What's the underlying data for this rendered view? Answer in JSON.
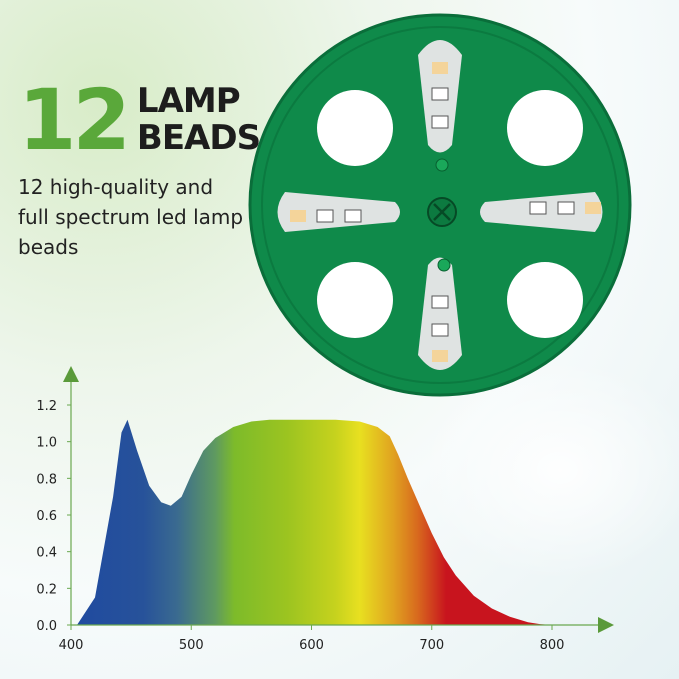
{
  "headline": {
    "number": "12",
    "line1": "LAMP",
    "line2": "BEADS"
  },
  "description": "12 high-quality and full spectrum led lamp beads",
  "colors": {
    "accent_green": "#5aa83a",
    "disc_green": "#0f8a4a"
  },
  "chart_data": {
    "type": "area",
    "title": "",
    "xlabel": "",
    "ylabel": "",
    "xlim": [
      400,
      800
    ],
    "ylim": [
      0,
      1.2
    ],
    "x_ticks": [
      "400",
      "500",
      "600",
      "700",
      "800"
    ],
    "y_ticks": [
      "0.0",
      "0.2",
      "0.4",
      "0.6",
      "0.8",
      "1.0",
      "1.2"
    ],
    "grid": false,
    "fill": "rainbow spectrum gradient",
    "x": [
      405,
      420,
      435,
      442,
      447,
      455,
      465,
      475,
      483,
      492,
      500,
      510,
      520,
      535,
      550,
      565,
      580,
      600,
      620,
      640,
      655,
      665,
      672,
      680,
      690,
      700,
      710,
      720,
      735,
      750,
      765,
      780,
      790,
      800
    ],
    "y": [
      0.0,
      0.15,
      0.7,
      1.05,
      1.12,
      0.95,
      0.76,
      0.67,
      0.65,
      0.7,
      0.82,
      0.95,
      1.02,
      1.08,
      1.11,
      1.12,
      1.12,
      1.12,
      1.12,
      1.11,
      1.08,
      1.03,
      0.93,
      0.8,
      0.65,
      0.5,
      0.37,
      0.27,
      0.16,
      0.09,
      0.045,
      0.015,
      0.005,
      0.0
    ]
  }
}
